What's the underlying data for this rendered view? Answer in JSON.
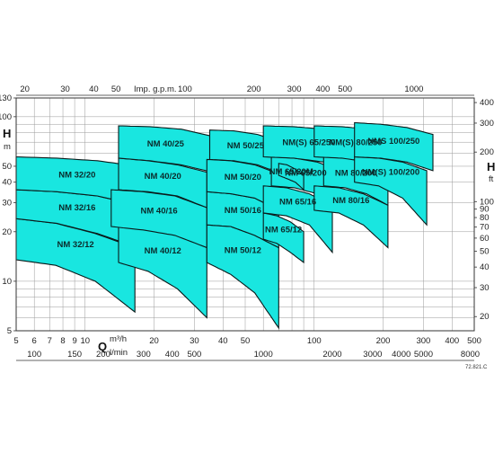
{
  "chart_data": {
    "type": "area",
    "title": "",
    "x_axis": {
      "scale": "log",
      "label_letter": "Q",
      "units": [
        "m³/h",
        "l/min"
      ],
      "primary_ticks": [
        5,
        6,
        7,
        8,
        9,
        10,
        20,
        30,
        40,
        50,
        100,
        200,
        300,
        400,
        500
      ],
      "primary_tick_labels": [
        "5",
        "6",
        "7",
        "8",
        "9",
        "10",
        "20",
        "30",
        "40",
        "50",
        "100",
        "200",
        "300",
        "400",
        "500"
      ],
      "lmin_ticks": [
        100,
        150,
        200,
        300,
        400,
        500,
        1000,
        2000,
        3000,
        4000,
        5000,
        8000
      ],
      "lmin_tick_labels": [
        "100",
        "150",
        "200",
        "300",
        "400",
        "500",
        "1000",
        "2000",
        "3000",
        "4000",
        "5000",
        "8000"
      ],
      "gpm_label": "Imp. g.p.m.",
      "gpm_ticks": [
        20,
        30,
        40,
        50,
        100,
        200,
        300,
        400,
        500,
        1000
      ],
      "gpm_tick_labels": [
        "20",
        "30",
        "40",
        "50",
        "100",
        "200",
        "300",
        "400",
        "500",
        "1000"
      ],
      "range_m3h": [
        5,
        500
      ]
    },
    "y_axis_left": {
      "scale": "log",
      "label_letter": "H",
      "unit": "m",
      "ticks": [
        5,
        10,
        20,
        30,
        40,
        50,
        100,
        130
      ],
      "tick_labels": [
        "5",
        "10",
        "20",
        "30",
        "40",
        "50",
        "100",
        "130"
      ],
      "range_m": [
        5,
        130
      ]
    },
    "y_axis_right": {
      "scale": "log",
      "label_letter": "H",
      "unit": "ft",
      "ticks": [
        20,
        30,
        40,
        50,
        60,
        70,
        80,
        90,
        100,
        200,
        300,
        400
      ],
      "tick_labels": [
        "20",
        "30",
        "40",
        "50",
        "60",
        "70",
        "80",
        "90",
        "100",
        "200",
        "300",
        "400"
      ]
    },
    "grid": true,
    "reference_code": "72.821.C",
    "pump_ranges": [
      {
        "label": "NM 32/12",
        "q": [
          5,
          16.5
        ],
        "h_top": [
          24,
          22.5,
          19.5,
          16
        ],
        "h_bottom": [
          13.5,
          12.5,
          10,
          6.5
        ]
      },
      {
        "label": "NM 32/16",
        "q": [
          5,
          17
        ],
        "h_top": [
          36,
          35,
          33,
          29
        ],
        "h_bottom": [
          24,
          22.5,
          19.5,
          16
        ]
      },
      {
        "label": "NM 32/20",
        "q": [
          5,
          17
        ],
        "h_top": [
          57,
          56,
          54,
          50
        ],
        "h_bottom": [
          36,
          35,
          33,
          29
        ]
      },
      {
        "label": "NM 40/12",
        "q": [
          14,
          34
        ],
        "h_top": [
          21.5,
          20.5,
          19,
          16
        ],
        "h_bottom": [
          13,
          11.5,
          9,
          6
        ]
      },
      {
        "label": "NM 40/16",
        "q": [
          13,
          34
        ],
        "h_top": [
          36,
          35,
          33,
          28
        ],
        "h_bottom": [
          21.5,
          20.5,
          19,
          16
        ]
      },
      {
        "label": "NM 40/20",
        "q": [
          14,
          34
        ],
        "h_top": [
          56,
          54,
          51,
          46
        ],
        "h_bottom": [
          36,
          35,
          33,
          28
        ]
      },
      {
        "label": "NM 40/25",
        "q": [
          14,
          36
        ],
        "h_top": [
          88,
          87,
          84,
          76
        ],
        "h_bottom": [
          56,
          54,
          51,
          46
        ]
      },
      {
        "label": "NM 50/12",
        "q": [
          34,
          70
        ],
        "h_top": [
          22,
          21.5,
          19,
          16
        ],
        "h_bottom": [
          13,
          11,
          8.5,
          5.2
        ]
      },
      {
        "label": "NM 50/16",
        "q": [
          34,
          70
        ],
        "h_top": [
          35,
          34,
          32,
          27
        ],
        "h_bottom": [
          22,
          21.5,
          19,
          16
        ]
      },
      {
        "label": "NM 50/20",
        "q": [
          34,
          70
        ],
        "h_top": [
          55,
          54,
          51,
          45
        ],
        "h_bottom": [
          35,
          34,
          32,
          27
        ]
      },
      {
        "label": "NM 50/25",
        "q": [
          35,
          72
        ],
        "h_top": [
          83,
          82,
          78,
          70
        ],
        "h_bottom": [
          55,
          54,
          51,
          45
        ]
      },
      {
        "label": "NM 65/12",
        "q": [
          60,
          90
        ],
        "h_top": [
          26,
          25,
          23,
          20
        ],
        "h_bottom": [
          18,
          17,
          15,
          13
        ]
      },
      {
        "label": "NM 65/16",
        "q": [
          60,
          120
        ],
        "h_top": [
          38,
          37,
          34,
          29
        ],
        "h_bottom": [
          26,
          25,
          22,
          15
        ]
      },
      {
        "label": "NM 65/200",
        "q": [
          65,
          130
        ],
        "h_top": [
          57,
          56,
          53,
          47
        ],
        "h_bottom": [
          38,
          37,
          34,
          29
        ]
      },
      {
        "label": "NM(S) 65/250",
        "q": [
          60,
          150
        ],
        "h_top": [
          88,
          87,
          84,
          76
        ],
        "h_bottom": [
          57,
          56,
          53,
          47
        ]
      },
      {
        "label": "NM 65/20M",
        "q": [
          70,
          90
        ],
        "h_top": [
          52,
          51,
          48,
          44
        ],
        "h_bottom": [
          44,
          42,
          40,
          36
        ]
      },
      {
        "label": "NM 80/16",
        "q": [
          100,
          210
        ],
        "h_top": [
          38,
          37,
          34,
          29
        ],
        "h_bottom": [
          27,
          26,
          22,
          16
        ]
      },
      {
        "label": "NM 80/200",
        "q": [
          110,
          210
        ],
        "h_top": [
          57,
          56,
          53,
          47
        ],
        "h_bottom": [
          38,
          37,
          34,
          29
        ]
      },
      {
        "label": "NM(S) 80/250",
        "q": [
          100,
          230
        ],
        "h_top": [
          88,
          87,
          84,
          76
        ],
        "h_bottom": [
          57,
          56,
          53,
          47
        ]
      },
      {
        "label": "NM(S) 100/200",
        "q": [
          150,
          310
        ],
        "h_top": [
          57,
          56,
          53,
          47
        ],
        "h_bottom": [
          40,
          38,
          32,
          22
        ]
      },
      {
        "label": "NMS 100/250",
        "q": [
          150,
          330
        ],
        "h_top": [
          92,
          90,
          86,
          78
        ],
        "h_bottom": [
          57,
          56,
          53,
          47
        ]
      }
    ]
  }
}
